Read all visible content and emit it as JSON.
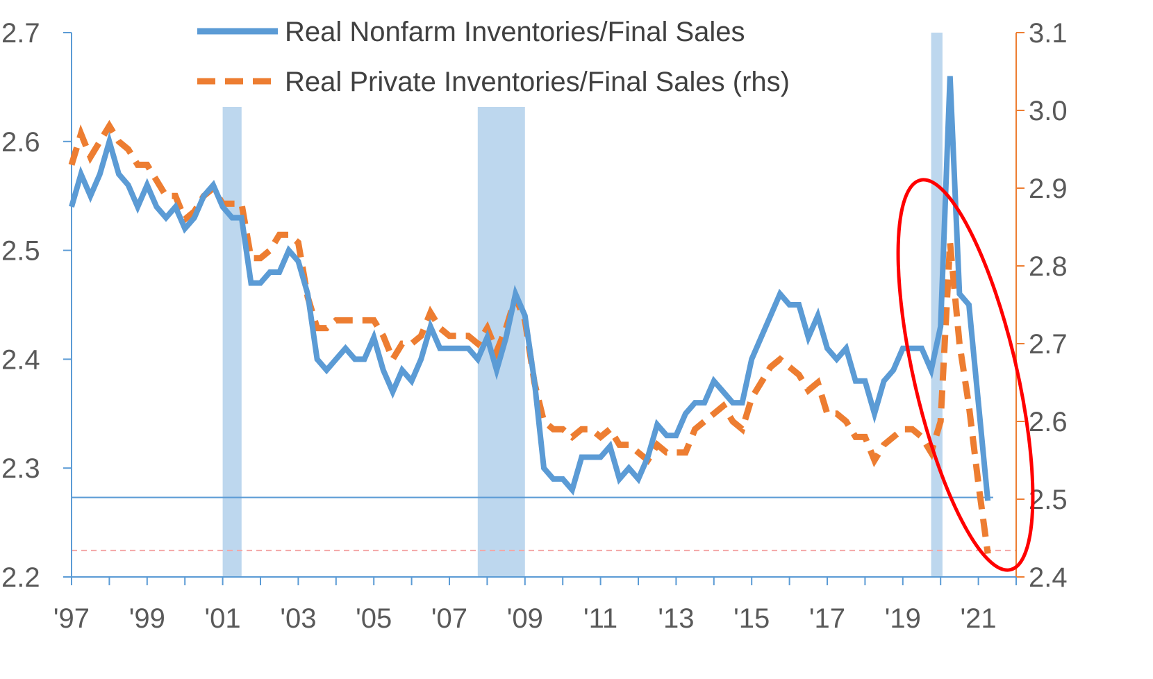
{
  "chart_data": {
    "type": "line",
    "title": "",
    "xlabel": "",
    "ylabel": "",
    "x_tick_labels": [
      "'97",
      "'99",
      "'01",
      "'03",
      "'05",
      "'07",
      "'09",
      "'11",
      "'13",
      "'15",
      "'17",
      "'19",
      "'21"
    ],
    "left_axis": {
      "ylim": [
        2.2,
        2.7
      ],
      "ticks": [
        "2.2",
        "2.3",
        "2.4",
        "2.5",
        "2.6",
        "2.7"
      ],
      "color": "#5b9bd5"
    },
    "right_axis": {
      "ylim": [
        2.4,
        3.1
      ],
      "ticks": [
        "2.4",
        "2.5",
        "2.6",
        "2.7",
        "2.8",
        "2.9",
        "3.0",
        "3.1"
      ],
      "color": "#ed7d31"
    },
    "legend": {
      "placement": "top-center",
      "entries": [
        {
          "label": "Real Nonfarm Inventories/Final Sales",
          "style": "solid"
        },
        {
          "label": "Real Private Inventories/Final Sales (rhs)",
          "style": "dashed"
        }
      ]
    },
    "recessions": [
      {
        "start": 2001.0,
        "end": 2001.5
      },
      {
        "start": 2007.75,
        "end": 2009.0
      },
      {
        "start": 2019.75,
        "end": 2020.05
      }
    ],
    "reference_lines": [
      {
        "axis": "left",
        "value": 2.273,
        "color": "#5b9bd5",
        "style": "solid"
      },
      {
        "axis": "right",
        "value": 2.434,
        "color": "#f4a6a6",
        "style": "dashed"
      }
    ],
    "annotation": {
      "type": "ellipse",
      "color": "#ff0000",
      "center": [
        2020.55,
        2.31
      ],
      "note": "highlights the 2020-2021 spike and drop"
    },
    "series": [
      {
        "name": "Real Nonfarm Inventories/Final Sales",
        "axis": "left",
        "color": "#5b9bd5",
        "style": "solid",
        "x": [
          1997.0,
          1997.25,
          1997.5,
          1997.75,
          1998.0,
          1998.25,
          1998.5,
          1998.75,
          1999.0,
          1999.25,
          1999.5,
          1999.75,
          2000.0,
          2000.25,
          2000.5,
          2000.75,
          2001.0,
          2001.25,
          2001.5,
          2001.75,
          2002.0,
          2002.25,
          2002.5,
          2002.75,
          2003.0,
          2003.25,
          2003.5,
          2003.75,
          2004.0,
          2004.25,
          2004.5,
          2004.75,
          2005.0,
          2005.25,
          2005.5,
          2005.75,
          2006.0,
          2006.25,
          2006.5,
          2006.75,
          2007.0,
          2007.25,
          2007.5,
          2007.75,
          2008.0,
          2008.25,
          2008.5,
          2008.75,
          2009.0,
          2009.25,
          2009.5,
          2009.75,
          2010.0,
          2010.25,
          2010.5,
          2010.75,
          2011.0,
          2011.25,
          2011.5,
          2011.75,
          2012.0,
          2012.25,
          2012.5,
          2012.75,
          2013.0,
          2013.25,
          2013.5,
          2013.75,
          2014.0,
          2014.25,
          2014.5,
          2014.75,
          2015.0,
          2015.25,
          2015.5,
          2015.75,
          2016.0,
          2016.25,
          2016.5,
          2016.75,
          2017.0,
          2017.25,
          2017.5,
          2017.75,
          2018.0,
          2018.25,
          2018.5,
          2018.75,
          2019.0,
          2019.25,
          2019.5,
          2019.75,
          2020.0,
          2020.25,
          2020.5,
          2020.75,
          2021.0,
          2021.25
        ],
        "values": [
          2.54,
          2.57,
          2.55,
          2.57,
          2.6,
          2.57,
          2.56,
          2.54,
          2.56,
          2.54,
          2.53,
          2.54,
          2.52,
          2.53,
          2.55,
          2.56,
          2.54,
          2.53,
          2.53,
          2.47,
          2.47,
          2.48,
          2.48,
          2.5,
          2.49,
          2.46,
          2.4,
          2.39,
          2.4,
          2.41,
          2.4,
          2.4,
          2.42,
          2.39,
          2.37,
          2.39,
          2.38,
          2.4,
          2.43,
          2.41,
          2.41,
          2.41,
          2.41,
          2.4,
          2.42,
          2.39,
          2.42,
          2.46,
          2.44,
          2.38,
          2.3,
          2.29,
          2.29,
          2.28,
          2.31,
          2.31,
          2.31,
          2.32,
          2.29,
          2.3,
          2.29,
          2.31,
          2.34,
          2.33,
          2.33,
          2.35,
          2.36,
          2.36,
          2.38,
          2.37,
          2.36,
          2.36,
          2.4,
          2.42,
          2.44,
          2.46,
          2.45,
          2.45,
          2.42,
          2.44,
          2.41,
          2.4,
          2.41,
          2.38,
          2.38,
          2.35,
          2.38,
          2.39,
          2.41,
          2.41,
          2.41,
          2.39,
          2.43,
          2.66,
          2.46,
          2.45,
          2.36,
          2.27
        ]
      },
      {
        "name": "Real Private Inventories/Final Sales (rhs)",
        "axis": "right",
        "color": "#ed7d31",
        "style": "dashed",
        "x": [
          1997.0,
          1997.25,
          1997.5,
          1997.75,
          1998.0,
          1998.25,
          1998.5,
          1998.75,
          1999.0,
          1999.25,
          1999.5,
          1999.75,
          2000.0,
          2000.25,
          2000.5,
          2000.75,
          2001.0,
          2001.25,
          2001.5,
          2001.75,
          2002.0,
          2002.25,
          2002.5,
          2002.75,
          2003.0,
          2003.25,
          2003.5,
          2003.75,
          2004.0,
          2004.25,
          2004.5,
          2004.75,
          2005.0,
          2005.25,
          2005.5,
          2005.75,
          2006.0,
          2006.25,
          2006.5,
          2006.75,
          2007.0,
          2007.25,
          2007.5,
          2007.75,
          2008.0,
          2008.25,
          2008.5,
          2008.75,
          2009.0,
          2009.25,
          2009.5,
          2009.75,
          2010.0,
          2010.25,
          2010.5,
          2010.75,
          2011.0,
          2011.25,
          2011.5,
          2011.75,
          2012.0,
          2012.25,
          2012.5,
          2012.75,
          2013.0,
          2013.25,
          2013.5,
          2013.75,
          2014.0,
          2014.25,
          2014.5,
          2014.75,
          2015.0,
          2015.25,
          2015.5,
          2015.75,
          2016.0,
          2016.25,
          2016.5,
          2016.75,
          2017.0,
          2017.25,
          2017.5,
          2017.75,
          2018.0,
          2018.25,
          2018.5,
          2018.75,
          2019.0,
          2019.25,
          2019.5,
          2019.75,
          2020.0,
          2020.25,
          2020.5,
          2020.75,
          2021.0,
          2021.25
        ],
        "values": [
          2.93,
          2.97,
          2.94,
          2.96,
          2.98,
          2.96,
          2.95,
          2.93,
          2.93,
          2.91,
          2.89,
          2.89,
          2.86,
          2.87,
          2.89,
          2.9,
          2.88,
          2.88,
          2.88,
          2.81,
          2.81,
          2.82,
          2.84,
          2.84,
          2.83,
          2.76,
          2.72,
          2.72,
          2.73,
          2.73,
          2.73,
          2.73,
          2.73,
          2.71,
          2.68,
          2.7,
          2.7,
          2.71,
          2.74,
          2.72,
          2.71,
          2.71,
          2.71,
          2.7,
          2.72,
          2.69,
          2.72,
          2.76,
          2.73,
          2.65,
          2.6,
          2.59,
          2.59,
          2.58,
          2.59,
          2.59,
          2.58,
          2.59,
          2.57,
          2.57,
          2.56,
          2.55,
          2.57,
          2.56,
          2.56,
          2.56,
          2.59,
          2.6,
          2.61,
          2.62,
          2.6,
          2.59,
          2.63,
          2.65,
          2.67,
          2.68,
          2.67,
          2.66,
          2.64,
          2.65,
          2.61,
          2.61,
          2.6,
          2.58,
          2.58,
          2.55,
          2.57,
          2.58,
          2.59,
          2.59,
          2.58,
          2.56,
          2.6,
          2.83,
          2.7,
          2.62,
          2.52,
          2.43
        ]
      }
    ]
  }
}
